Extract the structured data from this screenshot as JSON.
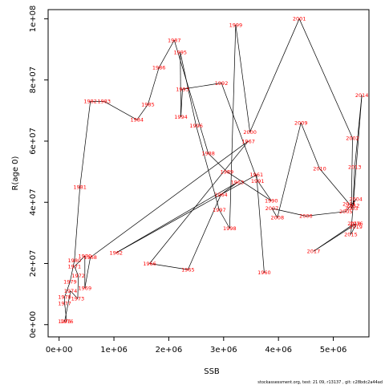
{
  "chart_data": {
    "type": "line",
    "xlabel": "SSB",
    "ylabel": "R(age 0)",
    "xlim": [
      -200000,
      5650000
    ],
    "ylim": [
      -4000000,
      103000000
    ],
    "x_ticks": [
      {
        "value": 0,
        "label": "0e+00"
      },
      {
        "value": 1000000,
        "label": "1e+06"
      },
      {
        "value": 2000000,
        "label": "2e+06"
      },
      {
        "value": 3000000,
        "label": "3e+06"
      },
      {
        "value": 4000000,
        "label": "4e+06"
      },
      {
        "value": 5000000,
        "label": "5e+06"
      }
    ],
    "y_ticks": [
      {
        "value": 0,
        "label": "0e+00"
      },
      {
        "value": 20000000,
        "label": "2e+07"
      },
      {
        "value": 40000000,
        "label": "4e+07"
      },
      {
        "value": 60000000,
        "label": "6e+07"
      },
      {
        "value": 80000000,
        "label": "8e+07"
      },
      {
        "value": 100000000,
        "label": "1e+08"
      }
    ],
    "series": [
      {
        "points": [
          {
            "label": "1960",
            "x": 3740000,
            "y": 17000000
          },
          {
            "label": "1961",
            "x": 3600000,
            "y": 49000000
          },
          {
            "label": "1962",
            "x": 1040000,
            "y": 23500000
          },
          {
            "label": "1963",
            "x": 3250000,
            "y": 46500000
          },
          {
            "label": "1964",
            "x": 2950000,
            "y": 42500000
          },
          {
            "label": "1965",
            "x": 2350000,
            "y": 18000000
          },
          {
            "label": "1966",
            "x": 1650000,
            "y": 20000000
          },
          {
            "label": "1967",
            "x": 3450000,
            "y": 60000000
          },
          {
            "label": "1968",
            "x": 570000,
            "y": 22000000
          },
          {
            "label": "1969",
            "x": 470000,
            "y": 12000000
          },
          {
            "label": "1970",
            "x": 470000,
            "y": 22500000
          },
          {
            "label": "1971",
            "x": 280000,
            "y": 19000000
          },
          {
            "label": "1972",
            "x": 350000,
            "y": 16000000
          },
          {
            "label": "1973",
            "x": 340000,
            "y": 8500000
          },
          {
            "label": "1974",
            "x": 210000,
            "y": 11000000
          },
          {
            "label": "1975",
            "x": 100000,
            "y": 1000000
          },
          {
            "label": "1976",
            "x": 140000,
            "y": 1000000
          },
          {
            "label": "1977",
            "x": 100000,
            "y": 7000000
          },
          {
            "label": "1978",
            "x": 100000,
            "y": 9000000
          },
          {
            "label": "1979",
            "x": 200000,
            "y": 14000000
          },
          {
            "label": "1980",
            "x": 280000,
            "y": 21000000
          },
          {
            "label": "1981",
            "x": 380000,
            "y": 45000000
          },
          {
            "label": "1982",
            "x": 570000,
            "y": 73000000
          },
          {
            "label": "1983",
            "x": 820000,
            "y": 73000000
          },
          {
            "label": "1984",
            "x": 1420000,
            "y": 67000000
          },
          {
            "label": "1985",
            "x": 1620000,
            "y": 72000000
          },
          {
            "label": "1986",
            "x": 1820000,
            "y": 84000000
          },
          {
            "label": "1987",
            "x": 2100000,
            "y": 93000000
          },
          {
            "label": "1988",
            "x": 2720000,
            "y": 56000000
          },
          {
            "label": "1989",
            "x": 3060000,
            "y": 50000000
          },
          {
            "label": "1990",
            "x": 3870000,
            "y": 40500000
          },
          {
            "label": "1991",
            "x": 3620000,
            "y": 47000000
          },
          {
            "label": "1992",
            "x": 2960000,
            "y": 79000000
          },
          {
            "label": "1993",
            "x": 2250000,
            "y": 77000000
          },
          {
            "label": "1994",
            "x": 2220000,
            "y": 68000000
          },
          {
            "label": "1995",
            "x": 2210000,
            "y": 89000000
          },
          {
            "label": "1996",
            "x": 2500000,
            "y": 65000000
          },
          {
            "label": "1997",
            "x": 2920000,
            "y": 37500000
          },
          {
            "label": "1998",
            "x": 3110000,
            "y": 31500000
          },
          {
            "label": "1999",
            "x": 3220000,
            "y": 98000000
          },
          {
            "label": "2000",
            "x": 3480000,
            "y": 63000000
          },
          {
            "label": "2001",
            "x": 4380000,
            "y": 100000000
          },
          {
            "label": "2002",
            "x": 5350000,
            "y": 61000000
          },
          {
            "label": "2003",
            "x": 5330000,
            "y": 38000000
          },
          {
            "label": "2004",
            "x": 5410000,
            "y": 41000000
          },
          {
            "label": "2005",
            "x": 5230000,
            "y": 37000000
          },
          {
            "label": "2006",
            "x": 4500000,
            "y": 35500000
          },
          {
            "label": "2007",
            "x": 3880000,
            "y": 38000000
          },
          {
            "label": "2008",
            "x": 3980000,
            "y": 35000000
          },
          {
            "label": "2009",
            "x": 4410000,
            "y": 66000000
          },
          {
            "label": "2010",
            "x": 4750000,
            "y": 51000000
          },
          {
            "label": "2011",
            "x": 5290000,
            "y": 39500000
          },
          {
            "label": "2012",
            "x": 5360000,
            "y": 39000000
          },
          {
            "label": "2013",
            "x": 5390000,
            "y": 51500000
          },
          {
            "label": "2014",
            "x": 5520000,
            "y": 75000000
          },
          {
            "label": "2015",
            "x": 5320000,
            "y": 29500000
          },
          {
            "label": "2016",
            "x": 5420000,
            "y": 33000000
          },
          {
            "label": "2017",
            "x": 4640000,
            "y": 24000000
          },
          {
            "label": "2018",
            "x": 5380000,
            "y": 33000000
          },
          {
            "label": "2019",
            "x": 5410000,
            "y": 32000000
          }
        ]
      }
    ]
  },
  "footer": {
    "text": "stockassessment.org, test: 21 09, r13137 , git: c28bdc2a44ad"
  }
}
